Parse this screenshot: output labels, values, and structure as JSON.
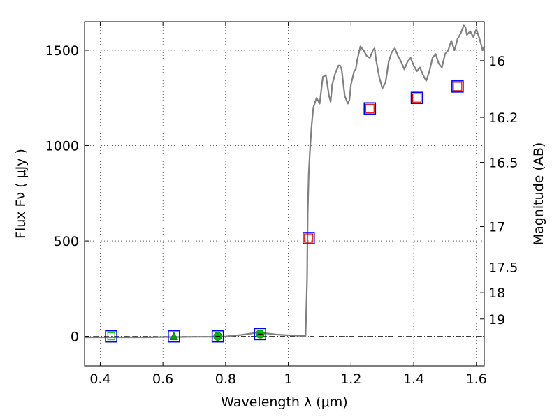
{
  "chart_data": {
    "type": "line",
    "xlabel": "Wavelength  λ (μm)",
    "ylabel": "Flux  Fν  ( μJy )",
    "y2label": "Magnitude (AB)",
    "xlim": [
      0.35,
      1.625
    ],
    "ylim": [
      -155,
      1650
    ],
    "grid": true,
    "x_ticks": [
      {
        "v": 0.4,
        "label": "0.4"
      },
      {
        "v": 0.6,
        "label": "0.6"
      },
      {
        "v": 0.8,
        "label": "0.8"
      },
      {
        "v": 1.0,
        "label": "1"
      },
      {
        "v": 1.2,
        "label": "1.2"
      },
      {
        "v": 1.4,
        "label": "1.4"
      },
      {
        "v": 1.6,
        "label": "1.6"
      }
    ],
    "y_ticks": [
      {
        "v": 0,
        "label": "0"
      },
      {
        "v": 500,
        "label": "500"
      },
      {
        "v": 1000,
        "label": "1000"
      },
      {
        "v": 1500,
        "label": "1500"
      }
    ],
    "mag_ticks": [
      {
        "v": 16.0,
        "label": "16"
      },
      {
        "v": 16.25,
        "label": "16.2"
      },
      {
        "v": 16.5,
        "label": "16.5"
      },
      {
        "v": 17.0,
        "label": "17"
      },
      {
        "v": 17.5,
        "label": "17.5"
      },
      {
        "v": 18.0,
        "label": "18"
      },
      {
        "v": 19.0,
        "label": "19"
      }
    ],
    "series": [
      {
        "style": "line",
        "color": "#808080",
        "x": [
          0.35,
          0.4,
          0.45,
          0.5,
          0.55,
          0.6,
          0.65,
          0.7,
          0.75,
          0.8,
          0.85,
          0.88,
          0.9,
          0.93,
          0.96,
          1.0,
          1.04,
          1.055,
          1.06,
          1.062,
          1.065,
          1.07,
          1.075,
          1.08,
          1.09,
          1.1,
          1.11,
          1.12,
          1.13,
          1.135,
          1.14,
          1.15,
          1.16,
          1.165,
          1.17,
          1.18,
          1.19,
          1.195,
          1.2,
          1.21,
          1.215,
          1.22,
          1.23,
          1.24,
          1.25,
          1.26,
          1.27,
          1.275,
          1.28,
          1.29,
          1.3,
          1.31,
          1.32,
          1.33,
          1.34,
          1.35,
          1.36,
          1.37,
          1.38,
          1.39,
          1.4,
          1.41,
          1.42,
          1.43,
          1.44,
          1.45,
          1.46,
          1.47,
          1.48,
          1.49,
          1.5,
          1.51,
          1.52,
          1.53,
          1.54,
          1.55,
          1.56,
          1.565,
          1.57,
          1.58,
          1.59,
          1.6,
          1.61,
          1.62,
          1.625
        ],
        "y": [
          -5,
          -5,
          -5,
          -5,
          -5,
          -3,
          -3,
          -2,
          -2,
          0,
          8,
          15,
          20,
          16,
          10,
          6,
          3,
          2,
          300,
          650,
          850,
          1000,
          1120,
          1200,
          1250,
          1220,
          1360,
          1370,
          1260,
          1230,
          1320,
          1380,
          1420,
          1420,
          1400,
          1260,
          1220,
          1240,
          1320,
          1390,
          1400,
          1450,
          1520,
          1500,
          1470,
          1460,
          1500,
          1510,
          1450,
          1360,
          1300,
          1330,
          1440,
          1490,
          1510,
          1470,
          1440,
          1400,
          1440,
          1460,
          1420,
          1390,
          1410,
          1370,
          1340,
          1390,
          1460,
          1480,
          1430,
          1410,
          1480,
          1500,
          1550,
          1500,
          1560,
          1590,
          1630,
          1620,
          1580,
          1600,
          1570,
          1610,
          1560,
          1500,
          1520
        ]
      },
      {
        "style": "points",
        "observed_markers": [
          "square",
          "triangle",
          "circle",
          "circle",
          "none",
          "none",
          "none",
          "none"
        ],
        "x": [
          0.435,
          0.635,
          0.775,
          0.91,
          1.065,
          1.26,
          1.41,
          1.54
        ],
        "y": [
          0,
          0,
          0,
          12,
          515,
          1195,
          1250,
          1310
        ]
      }
    ]
  }
}
